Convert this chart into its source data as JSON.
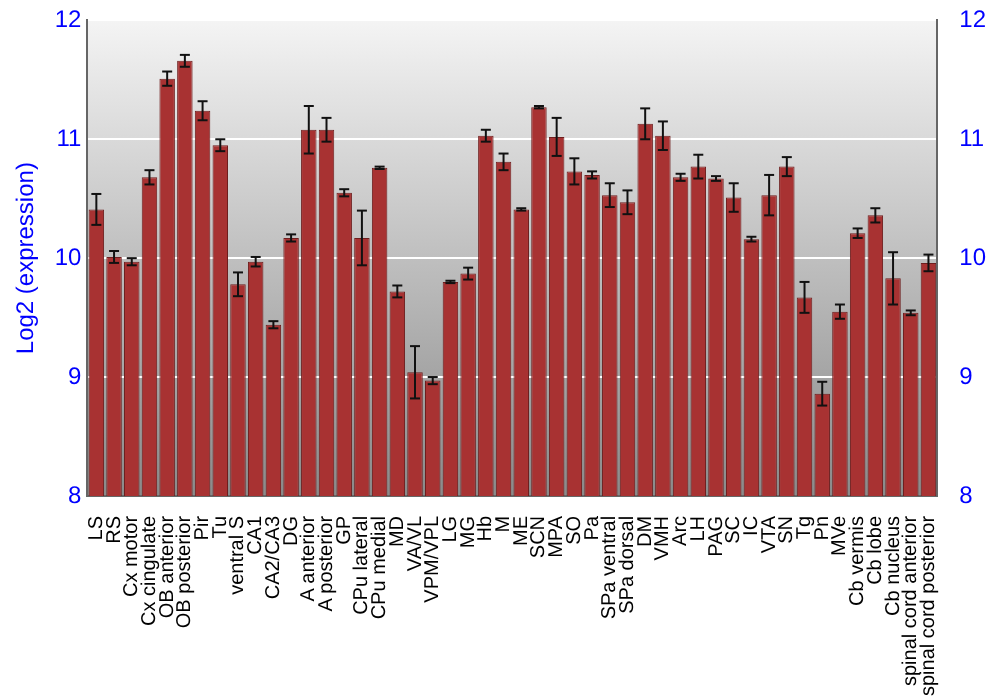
{
  "chart_data": {
    "type": "bar",
    "ylabel": "Log2 (expression)",
    "categories": [
      "LS",
      "RS",
      "Cx motor",
      "Cx cingulate",
      "OB anterior",
      "OB posterior",
      "Pir",
      "Tu",
      "ventral S",
      "CA1",
      "CA2/CA3",
      "DG",
      "A anterior",
      "A posterior",
      "GP",
      "CPu lateral",
      "CPu medial",
      "MD",
      "VA/VL",
      "VPM/VPL",
      "LG",
      "MG",
      "Hb",
      "M",
      "ME",
      "SCN",
      "MPA",
      "SO",
      "Pa",
      "SPa ventral",
      "SPa dorsal",
      "DM",
      "VMH",
      "Arc",
      "LH",
      "PAG",
      "SC",
      "IC",
      "VTA",
      "SN",
      "Tg",
      "Pn",
      "MVe",
      "Cb vermis",
      "Cb lobe",
      "Cb nucleus",
      "spinal cord anterior",
      "spinal cord posterior"
    ],
    "values": [
      10.41,
      10.01,
      9.97,
      10.68,
      11.51,
      11.66,
      11.24,
      10.95,
      9.78,
      9.97,
      9.44,
      10.17,
      11.08,
      11.08,
      10.55,
      10.17,
      10.76,
      9.72,
      9.04,
      8.97,
      9.8,
      9.87,
      11.03,
      10.81,
      10.41,
      11.27,
      11.02,
      10.73,
      10.7,
      10.53,
      10.47,
      11.13,
      11.03,
      10.68,
      10.77,
      10.67,
      10.51,
      10.16,
      10.53,
      10.77,
      9.67,
      8.86,
      9.55,
      10.21,
      10.36,
      9.83,
      9.54,
      9.96
    ],
    "errors": [
      0.13,
      0.05,
      0.03,
      0.06,
      0.06,
      0.05,
      0.08,
      0.05,
      0.1,
      0.04,
      0.03,
      0.03,
      0.2,
      0.1,
      0.03,
      0.23,
      0.01,
      0.05,
      0.22,
      0.03,
      0.01,
      0.05,
      0.05,
      0.07,
      0.01,
      0.01,
      0.16,
      0.11,
      0.03,
      0.1,
      0.1,
      0.13,
      0.12,
      0.03,
      0.1,
      0.02,
      0.12,
      0.02,
      0.17,
      0.08,
      0.13,
      0.1,
      0.06,
      0.04,
      0.06,
      0.22,
      0.02,
      0.07
    ],
    "color": "#a83232",
    "ylim": [
      8,
      12
    ],
    "yticks": [
      8,
      9,
      10,
      11,
      12
    ],
    "y2lim": [
      8,
      12
    ],
    "y2ticks": [
      8,
      9,
      10,
      11,
      12
    ],
    "grid": "y",
    "legend": false
  }
}
